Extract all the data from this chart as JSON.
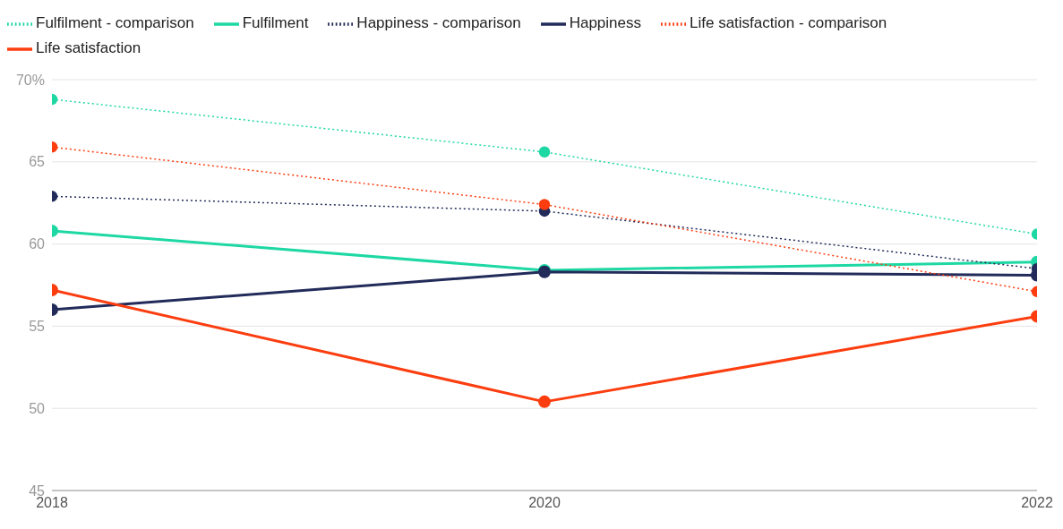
{
  "chart_data": {
    "type": "line",
    "x": [
      2018,
      2020,
      2022
    ],
    "xlim": [
      2018,
      2022
    ],
    "xticks": [
      2018,
      2020,
      2022
    ],
    "ylim": [
      45,
      70
    ],
    "yticks": [
      45,
      50,
      55,
      60,
      65,
      {
        "value": 70,
        "label": "70%"
      }
    ],
    "grid": "y",
    "legend": "top left",
    "marker": "circle",
    "series": [
      {
        "name": "Life satisfaction",
        "color": "#fc3d0f",
        "line_style": "solid",
        "values": [
          57.2,
          50.4,
          55.6
        ]
      },
      {
        "name": "Life satisfaction - comparison",
        "color": "#fc3d0f",
        "line_style": "dotted",
        "values": [
          65.9,
          62.4,
          57.1
        ]
      },
      {
        "name": "Happiness",
        "color": "#222b5a",
        "line_style": "solid",
        "values": [
          56.0,
          58.3,
          58.1
        ]
      },
      {
        "name": "Happiness - comparison",
        "color": "#222b5a",
        "line_style": "dotted",
        "values": [
          62.9,
          62.0,
          58.5
        ]
      },
      {
        "name": "Fulfilment",
        "color": "#1ed8a4",
        "line_style": "solid",
        "values": [
          60.8,
          58.4,
          58.9
        ]
      },
      {
        "name": "Fulfilment - comparison",
        "color": "#1ed8a4",
        "line_style": "dotted",
        "values": [
          68.8,
          65.6,
          60.6
        ]
      }
    ]
  }
}
